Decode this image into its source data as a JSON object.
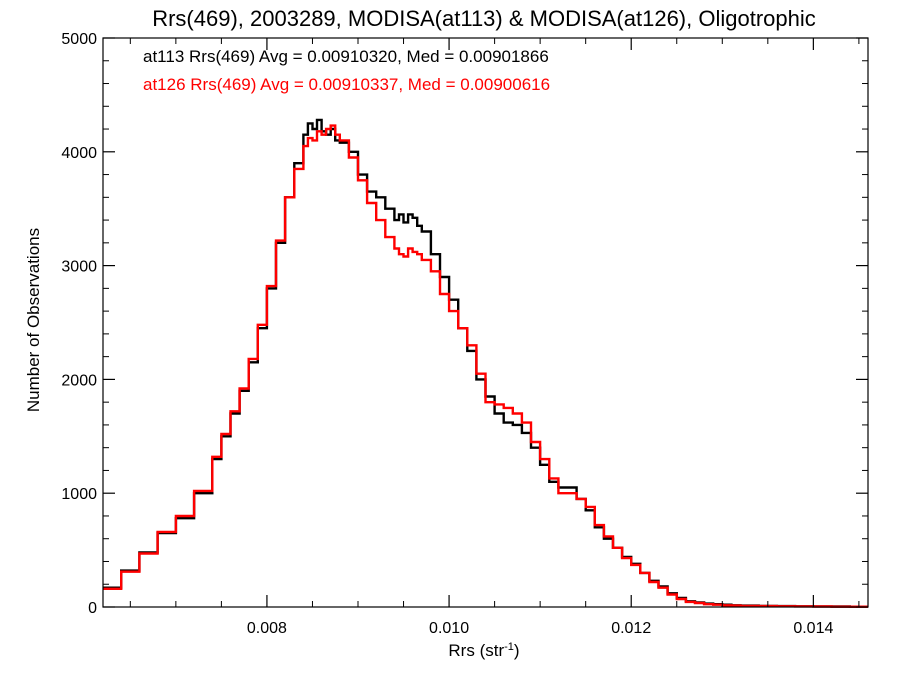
{
  "chart_data": {
    "type": "line",
    "title": "Rrs(469), 2003289, MODISA(at113) & MODISA(at126), Oligotrophic",
    "xlabel": "Rrs (str",
    "xlabel_sup": "-1",
    "xlabel_close": ")",
    "ylabel": "Number of Observations",
    "xlim": [
      0.0062,
      0.0146
    ],
    "ylim": [
      0,
      5000
    ],
    "x_ticks": [
      0.008,
      0.01,
      0.012,
      0.014
    ],
    "x_tick_labels": [
      "0.008",
      "0.010",
      "0.012",
      "0.014"
    ],
    "y_ticks": [
      0,
      1000,
      2000,
      3000,
      4000,
      5000
    ],
    "y_tick_labels": [
      "0",
      "1000",
      "2000",
      "3000",
      "4000",
      "5000"
    ],
    "line_style": "step",
    "grid": false,
    "legend_position": "top-left",
    "annotations": [
      {
        "text": "at113 Rrs(469) Avg = 0.00910320, Med = 0.00901866",
        "color": "#000000"
      },
      {
        "text": "at126 Rrs(469) Avg = 0.00910337, Med = 0.00900616",
        "color": "#ff0000"
      }
    ],
    "series": [
      {
        "color": "#000000",
        "x": [
          0.0062,
          0.0064,
          0.0066,
          0.0068,
          0.007,
          0.0072,
          0.0074,
          0.0075,
          0.0076,
          0.0077,
          0.0078,
          0.0079,
          0.008,
          0.0081,
          0.0082,
          0.0083,
          0.0084,
          0.00845,
          0.0085,
          0.00855,
          0.0086,
          0.00865,
          0.0087,
          0.00875,
          0.0088,
          0.0089,
          0.009,
          0.0091,
          0.0092,
          0.0093,
          0.0094,
          0.00945,
          0.0095,
          0.00955,
          0.0096,
          0.00965,
          0.0097,
          0.0098,
          0.0099,
          0.01,
          0.0101,
          0.0102,
          0.0103,
          0.0104,
          0.0105,
          0.0106,
          0.0107,
          0.0108,
          0.0109,
          0.011,
          0.0111,
          0.0112,
          0.0113,
          0.0114,
          0.0115,
          0.0116,
          0.0117,
          0.0118,
          0.0119,
          0.012,
          0.0121,
          0.0122,
          0.0123,
          0.0124,
          0.0125,
          0.0126,
          0.0127,
          0.0128,
          0.0129,
          0.013,
          0.0131,
          0.0132,
          0.0134,
          0.0136,
          0.0138,
          0.014,
          0.0142,
          0.0144,
          0.0146
        ],
        "values": [
          170,
          320,
          480,
          650,
          780,
          1000,
          1300,
          1500,
          1700,
          1900,
          2150,
          2450,
          2800,
          3200,
          3600,
          3900,
          4150,
          4250,
          4200,
          4280,
          4180,
          4150,
          4200,
          4100,
          4080,
          4000,
          3800,
          3650,
          3600,
          3500,
          3400,
          3450,
          3380,
          3450,
          3420,
          3350,
          3300,
          3100,
          2900,
          2700,
          2450,
          2250,
          2000,
          1850,
          1700,
          1620,
          1600,
          1530,
          1400,
          1250,
          1100,
          1050,
          1050,
          950,
          850,
          700,
          600,
          520,
          440,
          380,
          300,
          230,
          180,
          120,
          80,
          50,
          40,
          30,
          25,
          20,
          15,
          12,
          10,
          8,
          6,
          5,
          4,
          3,
          3
        ]
      },
      {
        "color": "#ff0000",
        "x": [
          0.0062,
          0.0064,
          0.0066,
          0.0068,
          0.007,
          0.0072,
          0.0074,
          0.0075,
          0.0076,
          0.0077,
          0.0078,
          0.0079,
          0.008,
          0.0081,
          0.0082,
          0.0083,
          0.0084,
          0.00845,
          0.0085,
          0.00855,
          0.0086,
          0.00865,
          0.0087,
          0.00875,
          0.0088,
          0.0089,
          0.009,
          0.0091,
          0.0092,
          0.0093,
          0.0094,
          0.00945,
          0.0095,
          0.00955,
          0.0096,
          0.00965,
          0.0097,
          0.0098,
          0.0099,
          0.01,
          0.0101,
          0.0102,
          0.0103,
          0.0104,
          0.0105,
          0.0106,
          0.0107,
          0.0108,
          0.0109,
          0.011,
          0.0111,
          0.0112,
          0.0113,
          0.0114,
          0.0115,
          0.0116,
          0.0117,
          0.0118,
          0.0119,
          0.012,
          0.0121,
          0.0122,
          0.0123,
          0.0124,
          0.0125,
          0.0126,
          0.0127,
          0.0128,
          0.0129,
          0.013,
          0.0131,
          0.0132,
          0.0134,
          0.0136,
          0.0138,
          0.014,
          0.0142,
          0.0144,
          0.0146
        ],
        "values": [
          160,
          310,
          470,
          660,
          800,
          1020,
          1320,
          1520,
          1720,
          1920,
          2180,
          2480,
          2820,
          3220,
          3600,
          3850,
          4050,
          4120,
          4100,
          4180,
          4150,
          4200,
          4230,
          4150,
          4100,
          3950,
          3750,
          3550,
          3400,
          3250,
          3150,
          3100,
          3080,
          3150,
          3120,
          3100,
          3050,
          2950,
          2750,
          2600,
          2450,
          2300,
          2050,
          1800,
          1780,
          1750,
          1700,
          1620,
          1450,
          1300,
          1130,
          1000,
          1000,
          950,
          880,
          720,
          620,
          520,
          430,
          370,
          300,
          220,
          170,
          110,
          70,
          45,
          35,
          25,
          20,
          15,
          12,
          10,
          8,
          6,
          5,
          4,
          3,
          3,
          3
        ]
      }
    ]
  }
}
